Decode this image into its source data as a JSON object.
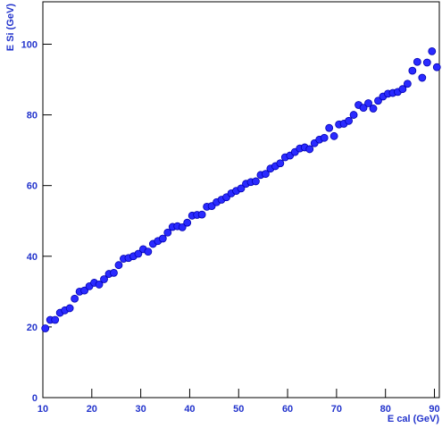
{
  "chart_data": {
    "type": "scatter",
    "x_label": "E cal (GeV)",
    "y_label": "E Si (GeV)",
    "x": [
      10.5,
      11.5,
      12.5,
      13.5,
      14.5,
      15.5,
      16.5,
      17.5,
      18.5,
      19.5,
      20.5,
      21.5,
      22.5,
      23.5,
      24.5,
      25.5,
      26.5,
      27.5,
      28.5,
      29.5,
      30.5,
      31.5,
      32.5,
      33.5,
      34.5,
      35.5,
      36.5,
      37.5,
      38.5,
      39.5,
      40.5,
      41.5,
      42.5,
      43.5,
      44.5,
      45.5,
      46.5,
      47.5,
      48.5,
      49.5,
      50.5,
      51.5,
      52.5,
      53.5,
      54.5,
      55.5,
      56.5,
      57.5,
      58.5,
      59.5,
      60.5,
      61.5,
      62.5,
      63.5,
      64.5,
      65.5,
      66.5,
      67.5,
      68.5,
      69.5,
      70.5,
      71.5,
      72.5,
      73.5,
      74.5,
      75.5,
      76.5,
      77.5,
      78.5,
      79.5,
      80.5,
      81.5,
      82.5,
      83.5,
      84.5,
      85.5,
      86.5,
      87.5,
      88.5,
      89.5,
      90.5
    ],
    "values": [
      19.6,
      22,
      22,
      24,
      24.7,
      25.3,
      28,
      30,
      30.3,
      31.5,
      32.5,
      32,
      33.5,
      35,
      35.3,
      37.5,
      39.3,
      39.5,
      40,
      40.7,
      42,
      41.3,
      43.5,
      44.3,
      45,
      46.7,
      48.3,
      48.5,
      48.2,
      49.5,
      51.5,
      51.7,
      51.8,
      54,
      54.2,
      55.3,
      56,
      56.7,
      57.8,
      58.5,
      59.2,
      60.5,
      61,
      61.2,
      63,
      63.3,
      64.8,
      65.5,
      66.3,
      68,
      68.5,
      69.5,
      70.5,
      70.8,
      70.3,
      72,
      73,
      73.5,
      76.3,
      74,
      77.3,
      77.5,
      78.3,
      80,
      82.8,
      82,
      83.3,
      81.8,
      84,
      85.2,
      86,
      86.2,
      86.5,
      87.3,
      88.8,
      92.5,
      95,
      90.5,
      94.8,
      98,
      93.5
    ],
    "color": "#2a2aff",
    "xlim": [
      10,
      91
    ],
    "ylim": [
      0,
      112
    ],
    "xticks": [
      10,
      20,
      30,
      40,
      50,
      60,
      70,
      80,
      90
    ],
    "yticks": [
      0,
      20,
      40,
      60,
      80,
      100
    ]
  }
}
